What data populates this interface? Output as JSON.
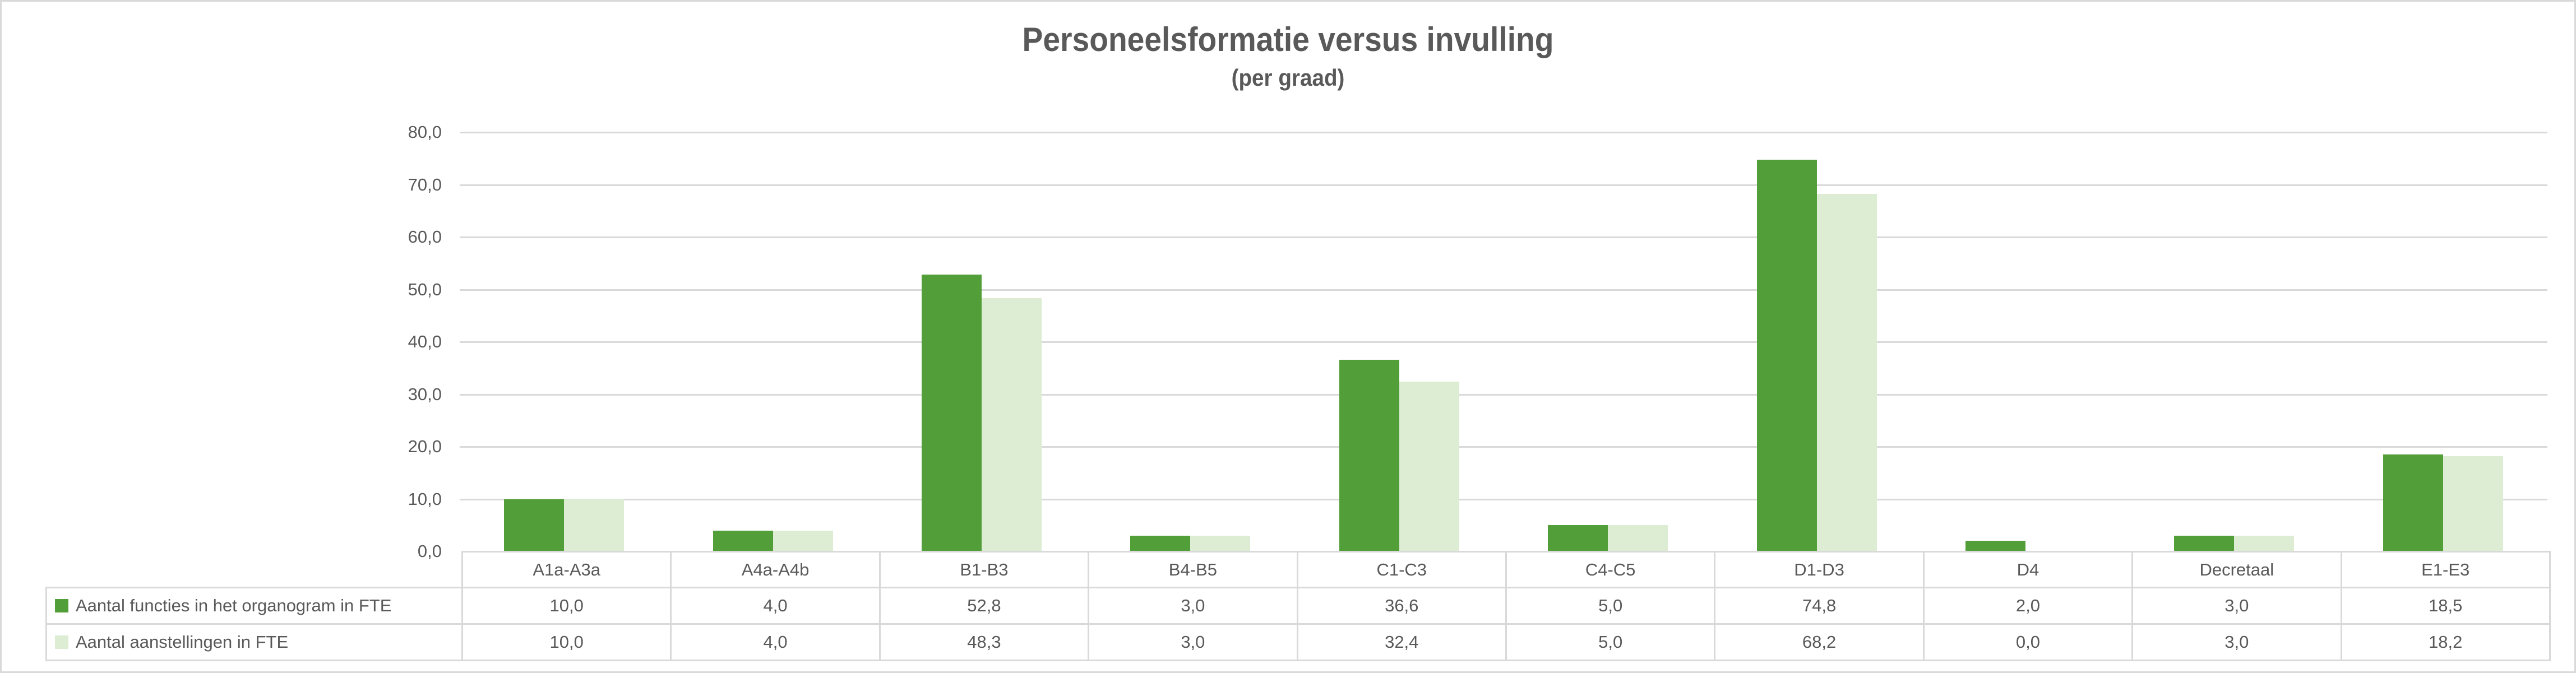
{
  "chart_data": {
    "type": "bar",
    "title": "Personeelsformatie versus invulling",
    "subtitle": "(per graad)",
    "categories": [
      "A1a-A3a",
      "A4a-A4b",
      "B1-B3",
      "B4-B5",
      "C1-C3",
      "C4-C5",
      "D1-D3",
      "D4",
      "Decretaal",
      "E1-E3"
    ],
    "series": [
      {
        "name": "Aantal functies in het organogram in FTE",
        "color": "#529E38",
        "values": [
          10.0,
          4.0,
          52.8,
          3.0,
          36.6,
          5.0,
          74.8,
          2.0,
          3.0,
          18.5
        ],
        "value_labels": [
          "10,0",
          "4,0",
          "52,8",
          "3,0",
          "36,6",
          "5,0",
          "74,8",
          "2,0",
          "3,0",
          "18,5"
        ]
      },
      {
        "name": "Aantal aanstellingen in FTE",
        "color": "#DCEDD3",
        "values": [
          10.0,
          4.0,
          48.3,
          3.0,
          32.4,
          5.0,
          68.2,
          0.0,
          3.0,
          18.2
        ],
        "value_labels": [
          "10,0",
          "4,0",
          "48,3",
          "3,0",
          "32,4",
          "5,0",
          "68,2",
          "0,0",
          "3,0",
          "18,2"
        ]
      }
    ],
    "ylim": [
      0,
      80
    ],
    "ytick_step": 10,
    "ytick_labels": [
      "80,0",
      "70,0",
      "60,0",
      "50,0",
      "40,0",
      "30,0",
      "20,0",
      "10,0",
      "0,0"
    ],
    "grid": true,
    "legend_position": "table-rows-left"
  },
  "colors": {
    "series1_fill": "#529E38",
    "series2_fill": "#DCEDD3",
    "gridline": "#D9D9D9",
    "table_border": "#D9D9D9",
    "text": "#595959",
    "canvas_border": "#D9D9D9",
    "background": "#FFFFFF"
  }
}
